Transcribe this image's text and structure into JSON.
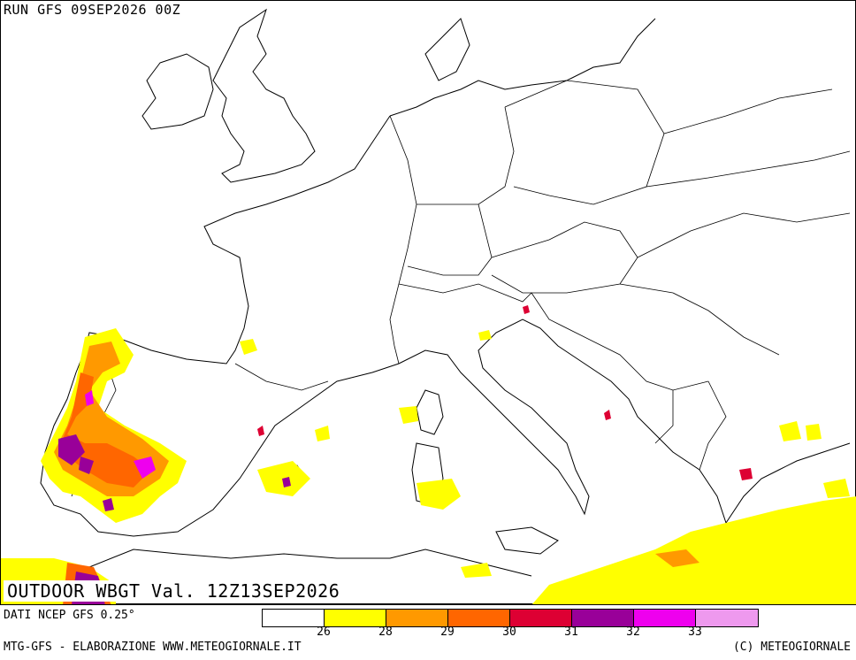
{
  "header": {
    "run_label": "RUN GFS 09SEP2026 00Z"
  },
  "map": {
    "title": "OUTDOOR WBGT Val. 12Z13SEP2026",
    "source": "DATI NCEP GFS 0.25°"
  },
  "legend": {
    "colors": [
      "#ffffff",
      "#ffff00",
      "#ff9900",
      "#ff6600",
      "#dd0033",
      "#990099",
      "#ee00ee",
      "#ee99ee"
    ],
    "ticks": [
      "26",
      "28",
      "29",
      "30",
      "31",
      "32",
      "33"
    ]
  },
  "footer": {
    "left": "MTG-GFS - ELABORAZIONE WWW.METEOGIORNALE.IT",
    "right": "(C) METEOGIORNALE"
  }
}
